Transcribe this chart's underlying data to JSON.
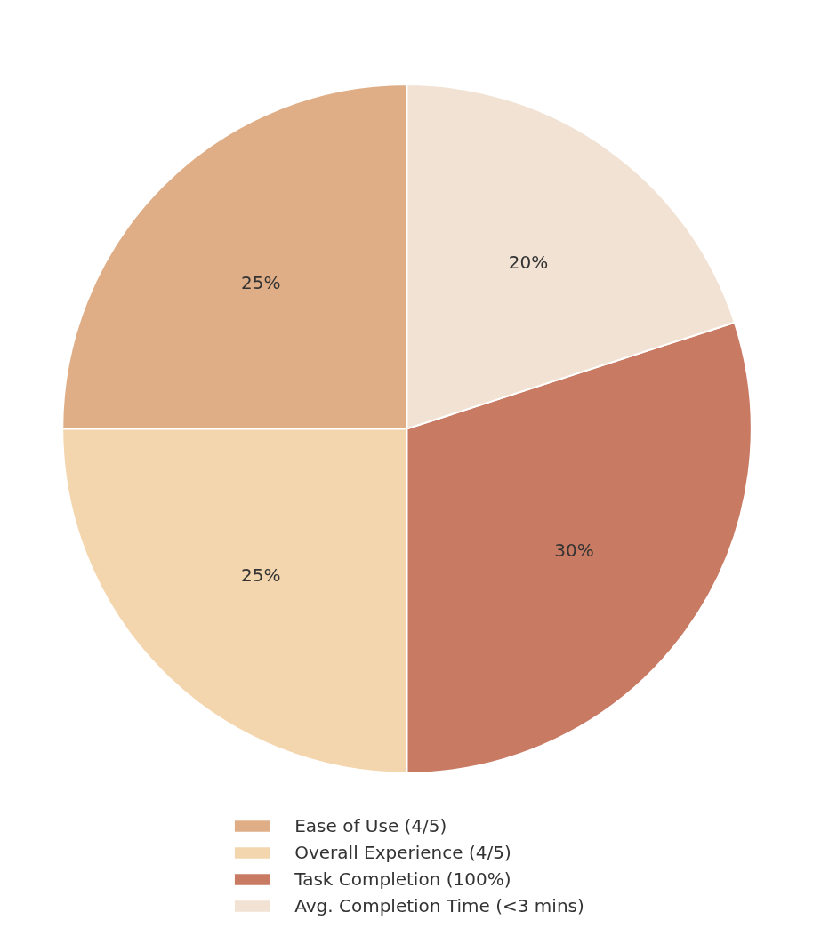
{
  "chart_data": {
    "type": "pie",
    "categories": [
      "Ease of Use (4/5)",
      "Overall Experience (4/5)",
      "Task Completion (100%)",
      "Avg. Completion Time (<3 mins)"
    ],
    "values": [
      25,
      25,
      30,
      20
    ],
    "colors": [
      "#dfae86",
      "#f4d6ae",
      "#c87a63",
      "#f1e2d3"
    ],
    "value_labels": [
      "25%",
      "25%",
      "30%",
      "20%"
    ],
    "legend": "bottom"
  }
}
